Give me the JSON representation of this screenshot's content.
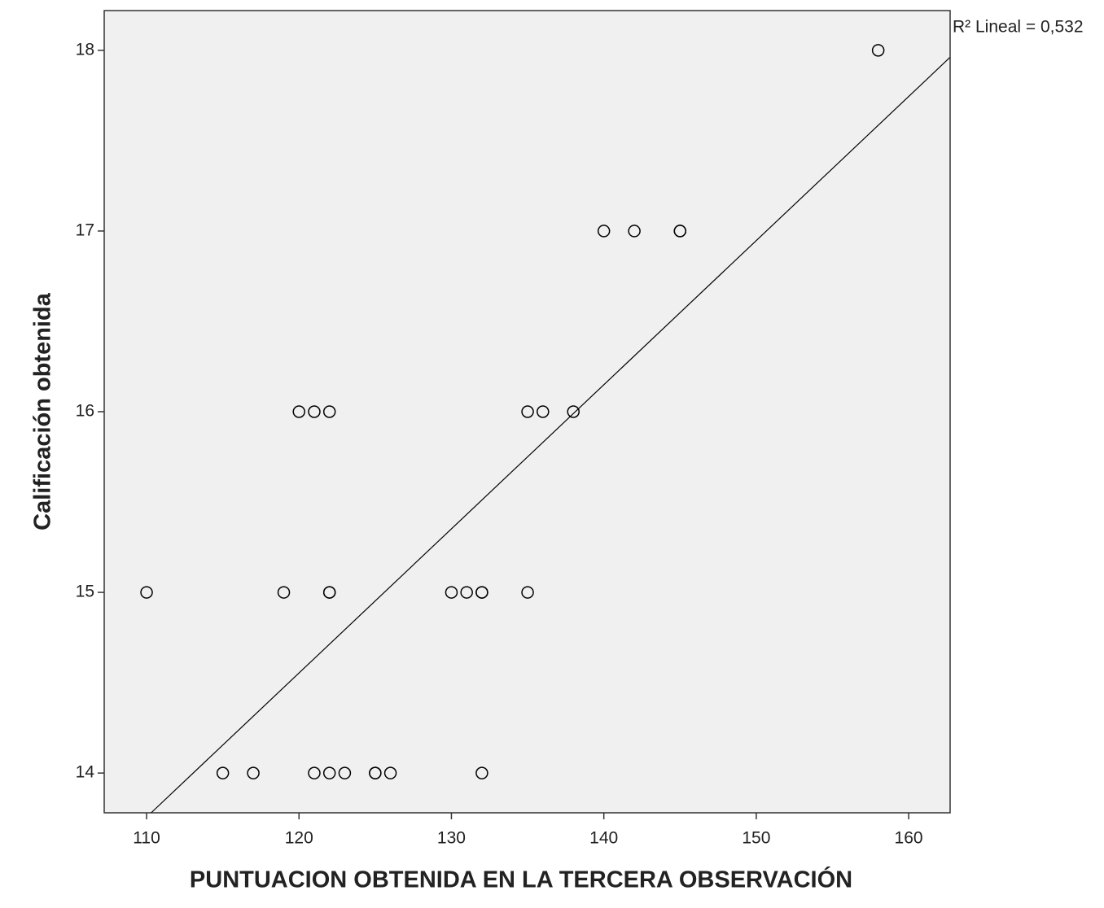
{
  "chart_data": {
    "type": "scatter",
    "x_label": "PUNTUACION OBTENIDA EN LA TERCERA OBSERVACIÓN",
    "y_label": "Calificación obtenida",
    "annotation": "R² Lineal = 0,532",
    "x": [
      110,
      115,
      117,
      119,
      120,
      121,
      121,
      122,
      122,
      122,
      122,
      123,
      125,
      125,
      126,
      130,
      131,
      132,
      132,
      132,
      135,
      135,
      136,
      138,
      140,
      142,
      145,
      145,
      158
    ],
    "values": [
      15,
      14,
      14,
      15,
      16,
      16,
      14,
      16,
      15,
      15,
      14,
      14,
      14,
      14,
      14,
      15,
      15,
      15,
      15,
      14,
      16,
      15,
      16,
      16,
      17,
      17,
      17,
      17,
      18
    ],
    "color": "#000000",
    "fit_line": {
      "x": [
        110.3,
        162.7
      ],
      "y": [
        13.78,
        17.96
      ],
      "color": "#000000"
    },
    "xlim": [
      107.22,
      162.72
    ],
    "ylim": [
      13.78,
      18.22
    ],
    "xticks": [
      110,
      120,
      130,
      140,
      150,
      160
    ],
    "yticks": [
      14,
      15,
      16,
      17,
      18
    ],
    "grid": false
  }
}
